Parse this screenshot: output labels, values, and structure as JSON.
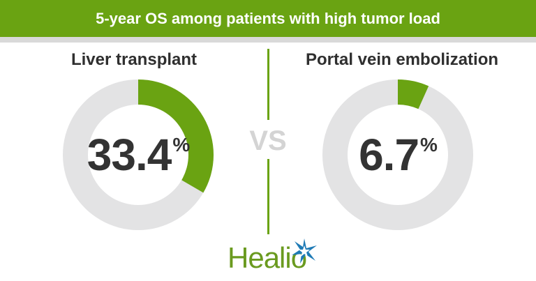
{
  "title": "5-year OS among patients with high tumor load",
  "colors": {
    "accent": "#6aa312",
    "track": "#e3e3e4",
    "divider_bar": "#d9d9d9",
    "text": "#333333",
    "vs": "#d4d4d4",
    "logo_green": "#6a9a1f",
    "logo_blue": "#1f7bb6"
  },
  "vs_label": "VS",
  "logo": {
    "text": "Healio",
    "icon": "star-burst-icon"
  },
  "chart_data": [
    {
      "type": "pie",
      "title": "Liver transplant",
      "values": [
        33.4,
        66.6
      ],
      "display_value": "33.4",
      "unit": "%"
    },
    {
      "type": "pie",
      "title": "Portal vein embolization",
      "values": [
        6.7,
        93.3
      ],
      "display_value": "6.7",
      "unit": "%"
    }
  ]
}
